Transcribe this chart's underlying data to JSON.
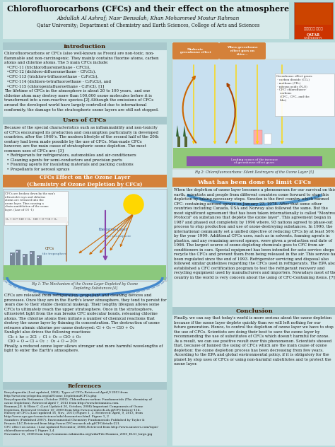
{
  "title": "Chlorofluorocarbons (CFCs) and their effect on the atmosphere",
  "authors": "Abdullah Al Ashraf; Nasr Bensalah; Khan Mohammed Mosiur Rahman",
  "institution": "Qatar University; Department of Chemistry and Earth Sciences, College of Arts and Sciences",
  "bg_color": "#b8dada",
  "col_bg": "#daeaea",
  "header_text_color": "#1a1a1a",
  "section_header_bg": "#a8c8cc",
  "section_header_color": "#3d1a00",
  "orange_header_bg": "#d4813a",
  "orange_header_color": "#ffffff",
  "body_color": "#111111",
  "ref_bg": "#c8dde0"
}
